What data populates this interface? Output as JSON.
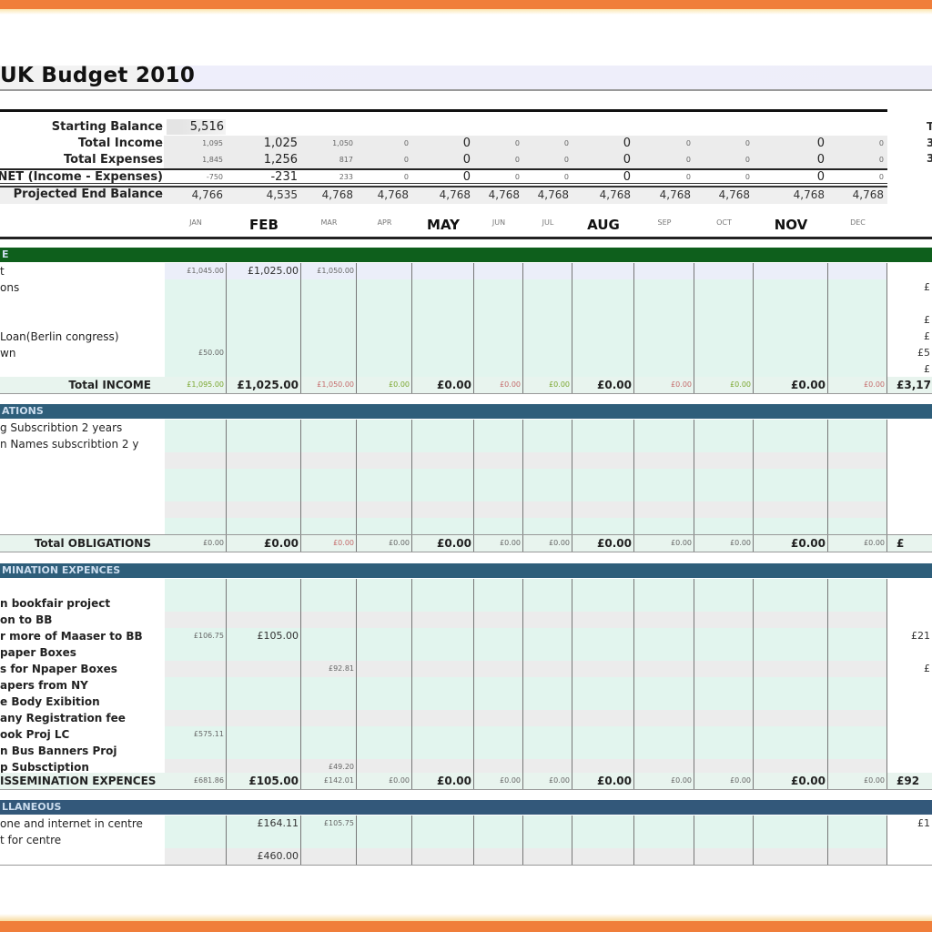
{
  "title": "UK Budget 2010",
  "months": [
    {
      "label": "JAN",
      "emph": false
    },
    {
      "label": "FEB",
      "emph": true
    },
    {
      "label": "MAR",
      "emph": false
    },
    {
      "label": "APR",
      "emph": false
    },
    {
      "label": "MAY",
      "emph": true
    },
    {
      "label": "JUN",
      "emph": false
    },
    {
      "label": "JUL",
      "emph": false
    },
    {
      "label": "AUG",
      "emph": true
    },
    {
      "label": "SEP",
      "emph": false
    },
    {
      "label": "OCT",
      "emph": false
    },
    {
      "label": "NOV",
      "emph": true
    },
    {
      "label": "DEC",
      "emph": false
    }
  ],
  "summary": {
    "starting_balance_label": "Starting Balance",
    "starting_balance": "5,516",
    "total_income_label": "Total Income",
    "total_income": [
      "1,095",
      "1,025",
      "1,050",
      "0",
      "0",
      "0",
      "0",
      "0",
      "0",
      "0",
      "0",
      "0"
    ],
    "total_expenses_label": "Total Expenses",
    "total_expenses": [
      "1,845",
      "1,256",
      "817",
      "0",
      "0",
      "0",
      "0",
      "0",
      "0",
      "0",
      "0",
      "0"
    ],
    "net_label": "NET (Income - Expenses)",
    "net": [
      "-750",
      "-231",
      "233",
      "0",
      "0",
      "0",
      "0",
      "0",
      "0",
      "0",
      "0",
      "0"
    ],
    "projected_label": "Projected End Balance",
    "projected": [
      "4,766",
      "4,535",
      "4,768",
      "4,768",
      "4,768",
      "4,768",
      "4,768",
      "4,768",
      "4,768",
      "4,768",
      "4,768",
      "4,768"
    ],
    "right_col": [
      "T",
      "3",
      "3"
    ]
  },
  "sections": {
    "income": {
      "header": "E",
      "rows": [
        {
          "label": "t",
          "jan": "£1,045.00",
          "feb": "£1,025.00",
          "mar": "£1,050.00",
          "total": ""
        },
        {
          "label": "ons",
          "total": "£"
        },
        {
          "label": "",
          "total": ""
        },
        {
          "label": "",
          "total": "£"
        },
        {
          "label": " Loan(Berlin congress)",
          "total": "£"
        },
        {
          "label": "wn",
          "jan": "£50.00",
          "total": "£5"
        },
        {
          "label": "",
          "total": "£"
        }
      ],
      "total_label": "Total INCOME",
      "totals": [
        "£1,095.00",
        "£1,025.00",
        "£1,050.00",
        "£0.00",
        "£0.00",
        "£0.00",
        "£0.00",
        "£0.00",
        "£0.00",
        "£0.00",
        "£0.00",
        "£0.00"
      ],
      "grand_total": "£3,17"
    },
    "obligations": {
      "header": "ATIONS",
      "rows": [
        {
          "label": "g Subscribtion 2 years"
        },
        {
          "label": "n Names subscribtion 2 y"
        },
        {
          "label": "",
          "faint": true
        },
        {
          "label": ""
        },
        {
          "label": "",
          "faint": true
        },
        {
          "label": "",
          "faint": true
        },
        {
          "label": ""
        }
      ],
      "total_label": "Total OBLIGATIONS",
      "totals": [
        "£0.00",
        "£0.00",
        "£0.00",
        "£0.00",
        "£0.00",
        "£0.00",
        "£0.00",
        "£0.00",
        "£0.00",
        "£0.00",
        "£0.00",
        "£0.00"
      ],
      "grand_total": "£"
    },
    "dissemination": {
      "header": "MINATION EXPENCES",
      "rows": [
        {
          "label": "",
          "faint": true
        },
        {
          "label": "n bookfair project"
        },
        {
          "label": "on to BB"
        },
        {
          "label": "r more of Maaser to BB",
          "jan": "£106.75",
          "feb": "£105.00",
          "total": "£21"
        },
        {
          "label": "paper Boxes"
        },
        {
          "label": "s for Npaper Boxes",
          "mar": "£92.81",
          "total": "£"
        },
        {
          "label": "apers from NY"
        },
        {
          "label": "e Body Exibition"
        },
        {
          "label": "any Registration fee"
        },
        {
          "label": "ook Proj LC",
          "jan": "£575.11"
        },
        {
          "label": "n Bus Banners Proj"
        },
        {
          "label": "p Subsctiption",
          "mar": "£49.20"
        }
      ],
      "total_label": "ISSEMINATION EXPENCES",
      "totals": [
        "£681.86",
        "£105.00",
        "£142.01",
        "£0.00",
        "£0.00",
        "£0.00",
        "£0.00",
        "£0.00",
        "£0.00",
        "£0.00",
        "£0.00",
        "£0.00"
      ],
      "grand_total": "£92"
    },
    "misc": {
      "header": "LLANEOUS",
      "rows": [
        {
          "label": "one and internet in centre",
          "feb": "£164.11",
          "mar": "£105.75",
          "total": "£1"
        },
        {
          "label": "t for centre"
        },
        {
          "label": "",
          "feb": "£460.00"
        }
      ]
    }
  },
  "colors": {
    "orange_frame": "#f07e3a",
    "income_header": "#0e5f1c",
    "section_header": "#2e5e7a",
    "cell_teal": "#e2f5ee"
  }
}
